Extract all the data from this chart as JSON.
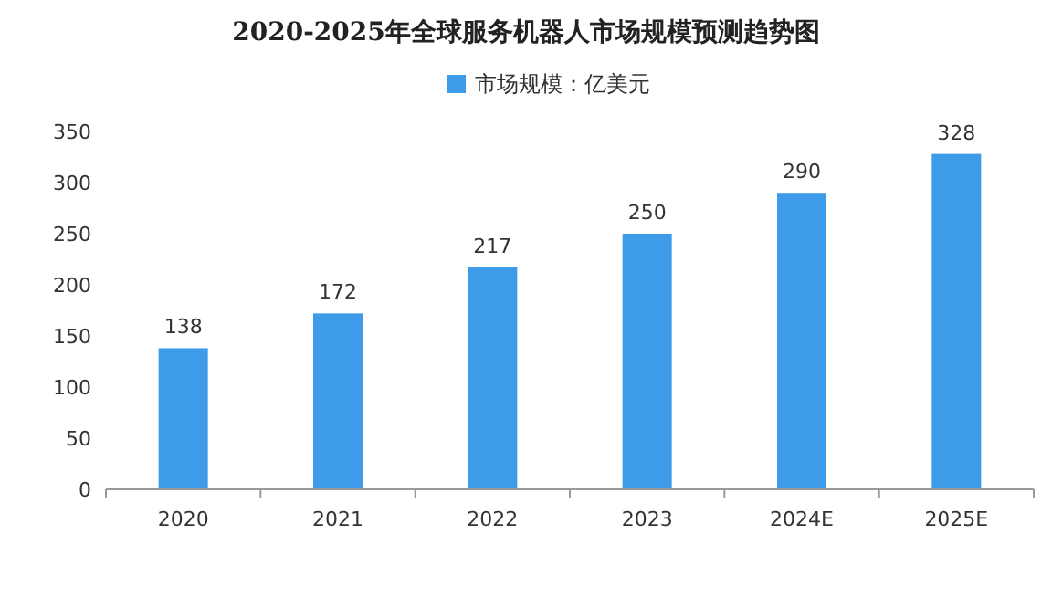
{
  "chart_data": {
    "type": "bar",
    "title": "2020-2025年全球服务机器人市场规模预测趋势图",
    "categories": [
      "2020",
      "2021",
      "2022",
      "2023",
      "2024E",
      "2025E"
    ],
    "series": [
      {
        "name": "市场规模：亿美元",
        "color": "#3d9be9",
        "values": [
          138,
          172,
          217,
          250,
          290,
          328
        ]
      }
    ],
    "ylim": [
      0,
      350
    ],
    "yticks": [
      0,
      50,
      100,
      150,
      200,
      250,
      300,
      350
    ],
    "data_labels": true,
    "legend": "top",
    "grid": false
  }
}
